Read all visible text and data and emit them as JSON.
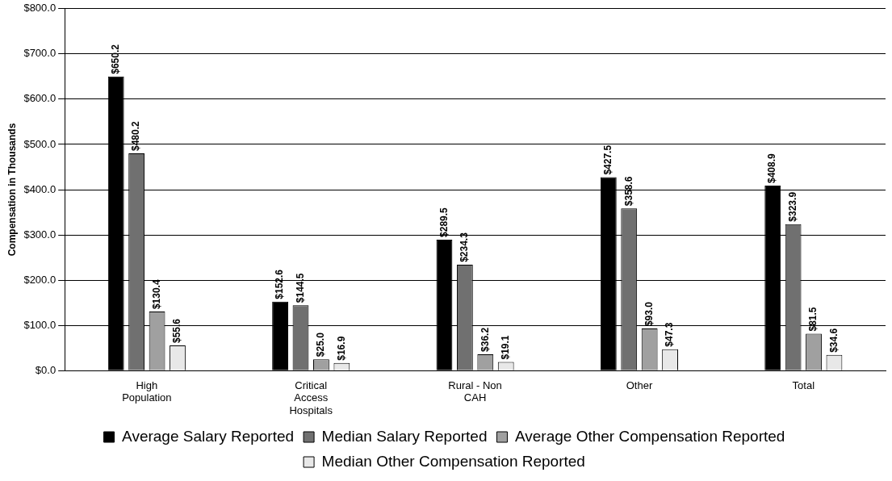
{
  "chart_data": {
    "type": "bar",
    "ylabel": "Compensation in Thousands",
    "categories": [
      "High Population",
      "Critical Access Hospitals",
      "Rural - Non CAH",
      "Other",
      "Total"
    ],
    "series": [
      {
        "name": "Average Salary Reported",
        "color": "#000000",
        "values": [
          650.2,
          152.6,
          289.5,
          427.5,
          408.9
        ],
        "value_labels": [
          "$650.2",
          "$152.6",
          "$289.5",
          "$427.5",
          "$408.9"
        ]
      },
      {
        "name": "Median Salary Reported",
        "color": "#707070",
        "values": [
          480.2,
          144.5,
          234.3,
          358.6,
          323.9
        ],
        "value_labels": [
          "$480.2",
          "$144.5",
          "$234.3",
          "$358.6",
          "$323.9"
        ]
      },
      {
        "name": "Average Other Compensation Reported",
        "color": "#a0a0a0",
        "values": [
          130.4,
          25.0,
          36.2,
          93.0,
          81.5
        ],
        "value_labels": [
          "$130.4",
          "$25.0",
          "$36.2",
          "$93.0",
          "$81.5"
        ]
      },
      {
        "name": "Median Other Compensation Reported",
        "color": "#e8e8e8",
        "values": [
          55.6,
          16.9,
          19.1,
          47.3,
          34.6
        ],
        "value_labels": [
          "$55.6",
          "$16.9",
          "$19.1",
          "$47.3",
          "$34.6"
        ]
      }
    ],
    "ylim": [
      0,
      800
    ],
    "yticks": [
      {
        "value": 0,
        "label": "$0.0"
      },
      {
        "value": 100,
        "label": "$100.0"
      },
      {
        "value": 200,
        "label": "$200.0"
      },
      {
        "value": 300,
        "label": "$300.0"
      },
      {
        "value": 400,
        "label": "$400.0"
      },
      {
        "value": 500,
        "label": "$500.0"
      },
      {
        "value": 600,
        "label": "$600.0"
      },
      {
        "value": 700,
        "label": "$700.0"
      },
      {
        "value": 800,
        "label": "$800.0"
      }
    ],
    "grid": "y",
    "legend": "bottom"
  }
}
